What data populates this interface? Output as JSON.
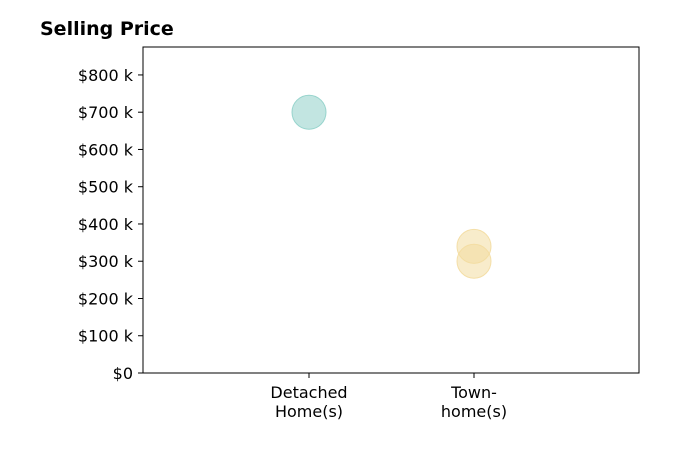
{
  "chart_data": {
    "type": "scatter",
    "title": "Selling Price",
    "xlabel": "",
    "ylabel": "",
    "categories": [
      "Detached\nHome(s)",
      "Town-\nhome(s)"
    ],
    "y_ticks": [
      "$0",
      "$100 k",
      "$200 k",
      "$300 k",
      "$400 k",
      "$500 k",
      "$600 k",
      "$700 k",
      "$800 k"
    ],
    "y_tick_values": [
      0,
      100000,
      200000,
      300000,
      400000,
      500000,
      600000,
      700000,
      800000
    ],
    "ylim": [
      0,
      875000
    ],
    "grid": false,
    "series": [
      {
        "category": "Detached\nHome(s)",
        "values": [
          700000
        ],
        "color": "#8fd0c9"
      },
      {
        "category": "Town-\nhome(s)",
        "values": [
          340000,
          300000
        ],
        "color": "#f3dca0"
      }
    ]
  }
}
